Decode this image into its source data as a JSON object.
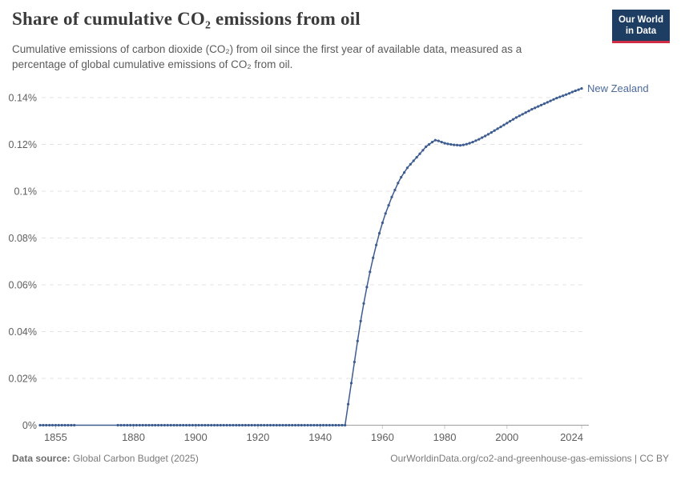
{
  "header": {
    "title": "Share of cumulative CO₂ emissions from oil",
    "subtitle_line1": "Cumulative emissions of carbon dioxide (CO₂) from oil since the first year of available data, measured as a",
    "subtitle_line2": "percentage of global cumulative emissions of CO₂ from oil.",
    "logo": {
      "line1": "Our World",
      "line2": "in Data",
      "bg_color": "#1d3d63",
      "accent_color": "#cf2d46"
    }
  },
  "footer": {
    "source_label": "Data source:",
    "source_value": "Global Carbon Budget (2025)",
    "right_text": "OurWorldinData.org/co2-and-greenhouse-gas-emissions | CC BY"
  },
  "chart_data": {
    "type": "line",
    "title": "Share of cumulative CO₂ emissions from oil",
    "xlabel": "",
    "ylabel": "",
    "unit": "%",
    "legend_position": "end-of-line-label",
    "grid": true,
    "line_color": "#3d5c8f",
    "label_color": "#4c6a9c",
    "grid_color": "#e3e3e3",
    "axis_color": "#9e9e9e",
    "tick_text_color": "#5e5e5e",
    "tick_mark_color": "#c9c9c9",
    "xlim": [
      1850,
      2024
    ],
    "ylim": [
      0,
      0.145
    ],
    "x_ticks": [
      1855,
      1880,
      1900,
      1920,
      1940,
      1960,
      1980,
      2000,
      2024
    ],
    "y_ticks": [
      0,
      0.02,
      0.04,
      0.06,
      0.08,
      0.1,
      0.12,
      0.14
    ],
    "y_tick_labels": [
      "0%",
      "0.02%",
      "0.04%",
      "0.06%",
      "0.08%",
      "0.1%",
      "0.12%",
      "0.14%"
    ],
    "marker_gap": {
      "from": 1862,
      "to": 1874
    },
    "series": [
      {
        "name": "New Zealand",
        "start_year": 1850,
        "values": [
          0,
          0,
          0,
          0,
          0,
          0,
          0,
          0,
          0,
          0,
          0,
          0,
          0,
          0,
          0,
          0,
          0,
          0,
          0,
          0,
          0,
          0,
          0,
          0,
          0,
          0,
          0,
          0,
          0,
          0,
          0,
          0,
          0,
          0,
          0,
          0,
          0,
          0,
          0,
          0,
          0,
          0,
          0,
          0,
          0,
          0,
          0,
          0,
          0,
          0,
          0,
          0,
          0,
          0,
          0,
          0,
          0,
          0,
          0,
          0,
          0,
          0,
          0,
          0,
          0,
          0,
          0,
          0,
          0,
          0,
          0,
          0,
          0,
          0,
          0,
          0,
          0,
          0,
          0,
          0,
          0,
          0,
          0,
          0,
          0,
          0,
          0,
          0,
          0,
          0,
          0,
          0,
          0,
          0,
          0,
          0,
          0,
          0,
          0,
          0.009,
          0.018,
          0.027,
          0.036,
          0.0445,
          0.052,
          0.059,
          0.0655,
          0.0715,
          0.077,
          0.082,
          0.0865,
          0.0905,
          0.094,
          0.0975,
          0.1005,
          0.1035,
          0.106,
          0.108,
          0.11,
          0.1115,
          0.113,
          0.1145,
          0.116,
          0.1175,
          0.119,
          0.12,
          0.121,
          0.1218,
          0.1215,
          0.121,
          0.1205,
          0.1202,
          0.12,
          0.1198,
          0.1197,
          0.1196,
          0.1198,
          0.1201,
          0.1205,
          0.121,
          0.1216,
          0.1222,
          0.1229,
          0.1236,
          0.1243,
          0.1251,
          0.1259,
          0.1267,
          0.1275,
          0.1283,
          0.1291,
          0.1299,
          0.1307,
          0.1315,
          0.1322,
          0.1329,
          0.1336,
          0.1343,
          0.135,
          0.1356,
          0.1362,
          0.1368,
          0.1374,
          0.138,
          0.1386,
          0.1392,
          0.1398,
          0.1403,
          0.1408,
          0.1413,
          0.1418,
          0.1424,
          0.1429,
          0.1434,
          0.1439
        ]
      }
    ]
  }
}
